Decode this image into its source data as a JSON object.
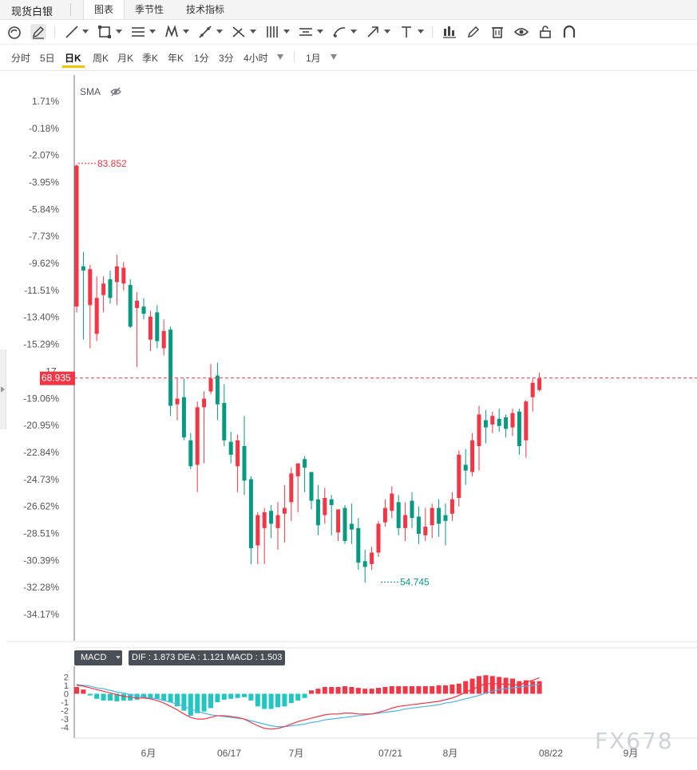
{
  "header": {
    "title": "现货白银",
    "tabs": [
      {
        "label": "图表",
        "active": true
      },
      {
        "label": "季节性",
        "active": false
      },
      {
        "label": "技术指标",
        "active": false
      }
    ]
  },
  "toolbar": {
    "tools": [
      "circle-tool-icon",
      "pen-tool-icon",
      "line-tool-icon",
      "rectangle-tool-icon",
      "parallel-lines-icon",
      "pattern-icon",
      "fib-tool-icon",
      "crossline-tool-icon",
      "bars-tool-icon",
      "ruler-tool-icon",
      "brush-tool-icon",
      "arrow-tool-icon",
      "text-tool-icon",
      "candles-icon",
      "edit-icon",
      "trash-icon",
      "eye-icon",
      "lock-icon",
      "magnet-icon"
    ]
  },
  "periods": {
    "items": [
      "分时",
      "5日",
      "日K",
      "周K",
      "月K",
      "季K",
      "年K",
      "1分",
      "3分",
      "4小时"
    ],
    "active": "日K",
    "range": "1月"
  },
  "indicators": {
    "sma": "SMA",
    "macd_label": "MACD",
    "macd_values": "DIF : 1.873  DEA : 1.121  MACD : 1.503"
  },
  "colors": {
    "up": "#f23645",
    "down": "#089981",
    "dif": "#f23645",
    "dea": "#4fb3e8"
  },
  "watermark": "FX678",
  "chart_data": [
    {
      "type": "candlestick",
      "title": "现货白银",
      "y_axis_percent_ticks": [
        "1.71%",
        "-0.18%",
        "-2.07%",
        "-3.95%",
        "-5.84%",
        "-7.73%",
        "-9.62%",
        "-11.51%",
        "-13.40%",
        "-15.29%",
        "-17.",
        "-19.06%",
        "-20.95%",
        "-22.84%",
        "-24.73%",
        "-26.62%",
        "-28.51%",
        "-30.39%",
        "-32.28%",
        "-34.17%"
      ],
      "x_ticks": [
        "6月",
        "06/17",
        "7月",
        "07/21",
        "8月",
        "08/22",
        "9月"
      ],
      "current_price": "68.935",
      "high_label": "83.852",
      "low_label": "54.745",
      "ylim": [
        52.5,
        87.0
      ],
      "candles": [
        {
          "o": 73.9,
          "h": 83.8,
          "l": 73.5,
          "c": 83.7
        },
        {
          "o": 76.7,
          "h": 77.7,
          "l": 71.6,
          "c": 76.4
        },
        {
          "o": 74.0,
          "h": 76.8,
          "l": 71.0,
          "c": 76.5
        },
        {
          "o": 72.0,
          "h": 76.0,
          "l": 71.5,
          "c": 74.5
        },
        {
          "o": 74.7,
          "h": 76.0,
          "l": 73.5,
          "c": 75.5
        },
        {
          "o": 75.8,
          "h": 76.4,
          "l": 74.1,
          "c": 74.5
        },
        {
          "o": 75.6,
          "h": 77.5,
          "l": 74.0,
          "c": 76.7
        },
        {
          "o": 75.5,
          "h": 77.0,
          "l": 75.0,
          "c": 76.6
        },
        {
          "o": 75.4,
          "h": 75.8,
          "l": 72.4,
          "c": 72.5
        },
        {
          "o": 73.8,
          "h": 74.9,
          "l": 69.7,
          "c": 74.3
        },
        {
          "o": 73.9,
          "h": 74.5,
          "l": 73.0,
          "c": 73.4
        },
        {
          "o": 71.6,
          "h": 73.6,
          "l": 70.8,
          "c": 73.2
        },
        {
          "o": 73.5,
          "h": 74.0,
          "l": 71.0,
          "c": 71.5
        },
        {
          "o": 71.0,
          "h": 73.0,
          "l": 70.5,
          "c": 72.2
        },
        {
          "o": 72.3,
          "h": 72.5,
          "l": 66.3,
          "c": 67.0
        },
        {
          "o": 67.1,
          "h": 68.9,
          "l": 66.0,
          "c": 67.5
        },
        {
          "o": 67.6,
          "h": 68.9,
          "l": 64.6,
          "c": 64.8
        },
        {
          "o": 64.6,
          "h": 65.1,
          "l": 62.6,
          "c": 62.8
        },
        {
          "o": 62.9,
          "h": 67.3,
          "l": 61.0,
          "c": 66.9
        },
        {
          "o": 66.9,
          "h": 68.0,
          "l": 63.0,
          "c": 67.5
        },
        {
          "o": 68.0,
          "h": 69.9,
          "l": 67.8,
          "c": 68.9
        },
        {
          "o": 69.1,
          "h": 70.0,
          "l": 66.0,
          "c": 67.1
        },
        {
          "o": 67.2,
          "h": 68.5,
          "l": 64.2,
          "c": 64.6
        },
        {
          "o": 64.5,
          "h": 65.2,
          "l": 63.0,
          "c": 63.6
        },
        {
          "o": 62.8,
          "h": 65.0,
          "l": 61.0,
          "c": 64.6
        },
        {
          "o": 64.2,
          "h": 66.3,
          "l": 60.8,
          "c": 61.8
        },
        {
          "o": 61.9,
          "h": 62.1,
          "l": 56.0,
          "c": 57.1
        },
        {
          "o": 57.3,
          "h": 59.6,
          "l": 56.0,
          "c": 59.4
        },
        {
          "o": 58.5,
          "h": 59.9,
          "l": 56.0,
          "c": 59.6
        },
        {
          "o": 59.7,
          "h": 60.1,
          "l": 57.8,
          "c": 58.8
        },
        {
          "o": 58.5,
          "h": 60.3,
          "l": 57.0,
          "c": 59.4
        },
        {
          "o": 59.5,
          "h": 61.5,
          "l": 57.5,
          "c": 59.9
        },
        {
          "o": 60.3,
          "h": 62.7,
          "l": 59.0,
          "c": 62.3
        },
        {
          "o": 62.1,
          "h": 63.0,
          "l": 59.6,
          "c": 63.0
        },
        {
          "o": 63.3,
          "h": 63.5,
          "l": 61.0,
          "c": 62.7
        },
        {
          "o": 62.4,
          "h": 62.4,
          "l": 59.8,
          "c": 60.4
        },
        {
          "o": 60.5,
          "h": 61.5,
          "l": 58.0,
          "c": 58.7
        },
        {
          "o": 59.4,
          "h": 61.3,
          "l": 58.8,
          "c": 60.6
        },
        {
          "o": 60.5,
          "h": 60.8,
          "l": 58.0,
          "c": 60.1
        },
        {
          "o": 58.2,
          "h": 59.8,
          "l": 57.6,
          "c": 59.8
        },
        {
          "o": 59.9,
          "h": 60.1,
          "l": 57.4,
          "c": 57.6
        },
        {
          "o": 58.8,
          "h": 60.2,
          "l": 57.4,
          "c": 58.4
        },
        {
          "o": 58.5,
          "h": 59.2,
          "l": 55.6,
          "c": 56.1
        },
        {
          "o": 56.2,
          "h": 57.0,
          "l": 54.7,
          "c": 55.8
        },
        {
          "o": 56.0,
          "h": 57.2,
          "l": 55.6,
          "c": 56.8
        },
        {
          "o": 56.8,
          "h": 59.0,
          "l": 56.5,
          "c": 58.8
        },
        {
          "o": 58.9,
          "h": 60.5,
          "l": 58.6,
          "c": 59.9
        },
        {
          "o": 59.7,
          "h": 61.4,
          "l": 59.2,
          "c": 60.9
        },
        {
          "o": 60.3,
          "h": 60.8,
          "l": 58.0,
          "c": 58.5
        },
        {
          "o": 58.5,
          "h": 60.3,
          "l": 57.6,
          "c": 59.4
        },
        {
          "o": 60.4,
          "h": 61.0,
          "l": 58.5,
          "c": 59.2
        },
        {
          "o": 59.3,
          "h": 60.0,
          "l": 57.4,
          "c": 58.1
        },
        {
          "o": 58.0,
          "h": 59.9,
          "l": 57.6,
          "c": 58.6
        },
        {
          "o": 58.7,
          "h": 60.2,
          "l": 57.8,
          "c": 59.9
        },
        {
          "o": 59.9,
          "h": 60.5,
          "l": 57.9,
          "c": 58.8
        },
        {
          "o": 59.4,
          "h": 60.2,
          "l": 57.3,
          "c": 59.0
        },
        {
          "o": 59.5,
          "h": 61.0,
          "l": 59.0,
          "c": 60.5
        },
        {
          "o": 60.6,
          "h": 63.9,
          "l": 60.0,
          "c": 63.6
        },
        {
          "o": 62.9,
          "h": 64.0,
          "l": 61.5,
          "c": 62.5
        },
        {
          "o": 62.4,
          "h": 65.1,
          "l": 62.1,
          "c": 64.6
        },
        {
          "o": 64.2,
          "h": 67.0,
          "l": 62.5,
          "c": 66.4
        },
        {
          "o": 66.0,
          "h": 66.7,
          "l": 64.4,
          "c": 65.5
        },
        {
          "o": 65.7,
          "h": 66.6,
          "l": 65.1,
          "c": 66.3
        },
        {
          "o": 66.1,
          "h": 66.8,
          "l": 65.2,
          "c": 65.6
        },
        {
          "o": 66.2,
          "h": 66.4,
          "l": 64.8,
          "c": 65.4
        },
        {
          "o": 65.5,
          "h": 66.8,
          "l": 64.9,
          "c": 66.5
        },
        {
          "o": 66.6,
          "h": 66.8,
          "l": 63.6,
          "c": 64.2
        },
        {
          "o": 64.6,
          "h": 67.4,
          "l": 63.4,
          "c": 67.3
        },
        {
          "o": 67.6,
          "h": 68.9,
          "l": 66.6,
          "c": 68.6
        },
        {
          "o": 68.1,
          "h": 69.3,
          "l": 68.0,
          "c": 68.9
        }
      ]
    },
    {
      "type": "macd",
      "y_ticks": [
        "2",
        "1",
        "0",
        "-1",
        "-2",
        "-3",
        "-4"
      ],
      "ylim": [
        -4.5,
        2.6
      ],
      "histogram": [
        0.8,
        0.5,
        -0.2,
        -0.6,
        -0.8,
        -0.8,
        -0.9,
        -0.8,
        -0.8,
        -0.7,
        -0.5,
        -0.5,
        -0.6,
        -0.8,
        -1.0,
        -1.5,
        -2.0,
        -2.6,
        -2.3,
        -2.1,
        -1.7,
        -1.0,
        -0.7,
        -0.6,
        -0.5,
        -0.4,
        -0.8,
        -1.5,
        -1.8,
        -1.8,
        -1.6,
        -1.5,
        -1.1,
        -0.8,
        -0.5,
        0.4,
        0.6,
        0.8,
        0.8,
        0.8,
        0.9,
        0.8,
        0.7,
        0.6,
        0.6,
        0.7,
        0.8,
        0.9,
        0.9,
        0.9,
        0.9,
        0.9,
        0.9,
        0.9,
        1.0,
        1.0,
        1.1,
        1.2,
        1.5,
        1.8,
        2.1,
        2.2,
        2.1,
        2.0,
        1.9,
        1.8,
        1.5,
        1.6,
        1.5,
        1.5
      ],
      "dif": [
        1.0,
        0.9,
        0.7,
        0.5,
        0.3,
        0.1,
        -0.1,
        -0.3,
        -0.4,
        -0.5,
        -0.5,
        -0.6,
        -0.8,
        -1.1,
        -1.5,
        -1.9,
        -2.4,
        -2.8,
        -3.0,
        -3.0,
        -2.8,
        -2.6,
        -2.6,
        -2.7,
        -2.8,
        -3.0,
        -3.4,
        -3.8,
        -4.1,
        -4.2,
        -4.1,
        -3.9,
        -3.6,
        -3.3,
        -3.1,
        -2.9,
        -2.7,
        -2.5,
        -2.4,
        -2.4,
        -2.3,
        -2.3,
        -2.4,
        -2.4,
        -2.4,
        -2.2,
        -2.0,
        -1.7,
        -1.5,
        -1.4,
        -1.3,
        -1.2,
        -1.1,
        -1.0,
        -0.9,
        -0.7,
        -0.5,
        -0.2,
        0.2,
        0.5,
        0.9,
        1.2,
        1.2,
        1.2,
        1.1,
        1.1,
        1.0,
        1.4,
        1.6,
        1.9
      ],
      "dea": [
        1.1,
        1.0,
        0.9,
        0.7,
        0.6,
        0.4,
        0.2,
        0.1,
        -0.1,
        -0.2,
        -0.4,
        -0.5,
        -0.6,
        -0.8,
        -1.0,
        -1.2,
        -1.5,
        -1.8,
        -2.1,
        -2.3,
        -2.5,
        -2.6,
        -2.7,
        -2.8,
        -2.9,
        -3.0,
        -3.2,
        -3.4,
        -3.6,
        -3.8,
        -3.9,
        -3.9,
        -3.8,
        -3.7,
        -3.6,
        -3.4,
        -3.3,
        -3.1,
        -3.0,
        -2.9,
        -2.8,
        -2.7,
        -2.6,
        -2.5,
        -2.4,
        -2.3,
        -2.2,
        -2.1,
        -2.0,
        -1.8,
        -1.7,
        -1.6,
        -1.5,
        -1.4,
        -1.3,
        -1.1,
        -1.0,
        -0.8,
        -0.6,
        -0.4,
        -0.2,
        0.1,
        0.3,
        0.5,
        0.6,
        0.7,
        0.8,
        0.9,
        1.0,
        1.1
      ]
    }
  ]
}
